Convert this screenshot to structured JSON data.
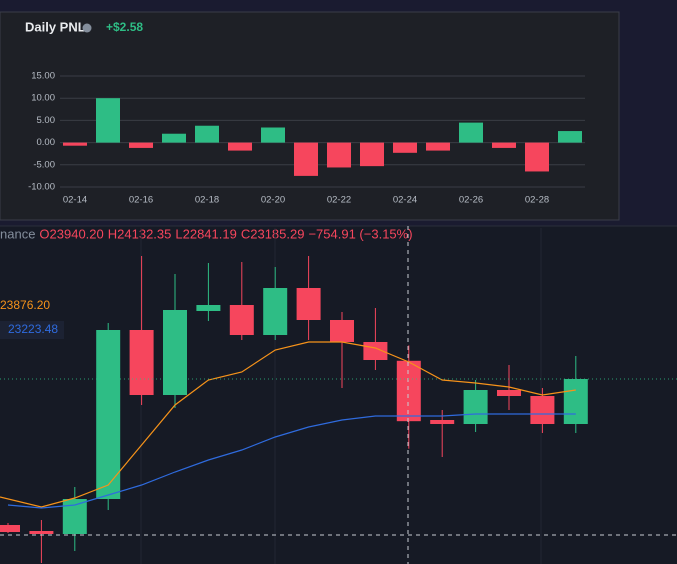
{
  "chart_data": [
    {
      "type": "bar",
      "title": "Daily PNL",
      "subtitle": "+$2.58",
      "categories": [
        "02-14",
        null,
        "02-16",
        null,
        "02-18",
        null,
        "02-20",
        null,
        "02-22",
        null,
        "02-24",
        null,
        "02-26",
        null,
        "02-28",
        null
      ],
      "values": [
        -0.7,
        10.0,
        -1.2,
        2.0,
        3.8,
        -1.8,
        3.4,
        -7.5,
        -5.6,
        -5.3,
        -2.3,
        -1.8,
        4.5,
        -1.2,
        -6.5,
        2.6
      ],
      "up_color": "#2ebd85",
      "down_color": "#f6465d",
      "ylim": [
        -10,
        15
      ],
      "yticks": [
        {
          "value": 15,
          "label": "15.00"
        },
        {
          "value": 10,
          "label": "10.00"
        },
        {
          "value": 5,
          "label": "5.00"
        },
        {
          "value": 0,
          "label": "0.00"
        },
        {
          "value": -5,
          "label": "-5.00"
        },
        {
          "value": -10,
          "label": "-10.00"
        }
      ],
      "grid": true
    },
    {
      "type": "candlestick",
      "symbol": "nance",
      "ohlc_labels": [
        "O23940.20",
        "H24132.35",
        "L22841.19",
        "C23185.29"
      ],
      "change_label": "−754.91 (−3.15%)",
      "open": [
        21887.5,
        21812.5,
        21775,
        22212.5,
        24325,
        23512.5,
        24562.5,
        24637.5,
        24262.5,
        24850,
        24450,
        24175,
        23940.2,
        23200,
        23150,
        23575,
        23500,
        23150
      ],
      "high": [
        21912.5,
        21950,
        22362.5,
        24412.5,
        25250,
        25025,
        25162.5,
        25175,
        25112.5,
        25250,
        24550,
        24600,
        24132.35,
        23325,
        23700,
        23887.5,
        23600,
        24000
      ],
      "low": [
        21787.5,
        21412.5,
        21562.5,
        22075,
        23387.5,
        23350,
        24437.5,
        24200,
        24200,
        24200,
        23600,
        23825,
        22841.19,
        22737.5,
        23050,
        23325,
        23037.5,
        23037.5
      ],
      "close": [
        21800,
        21775,
        22212.5,
        24325,
        23512.5,
        24575,
        24637.5,
        24262.5,
        24850,
        24450,
        24175,
        23950,
        23185.29,
        23150,
        23575,
        23500,
        23150,
        23712.5
      ],
      "up_color": "#2ebd85",
      "down_color": "#f6465d",
      "ylim": [
        21400,
        25600
      ],
      "overlays": [
        {
          "label": "23876.20",
          "color": "#f7931a",
          "values": [
            22237.5,
            22112.5,
            22225,
            22387.5,
            22887.5,
            23387.5,
            23700,
            23800,
            24075,
            24175,
            24175,
            24100,
            23925,
            23700,
            23662.5,
            23612.5,
            23512.5,
            23575
          ]
        },
        {
          "label": "23223.48",
          "color": "#2f6bde",
          "values": [
            22137.5,
            22100,
            22137.5,
            22262.5,
            22387.5,
            22550,
            22700,
            22825,
            22987.5,
            23112.5,
            23200,
            23250,
            23250,
            23250,
            23275,
            23275,
            23275,
            23275
          ]
        }
      ]
    }
  ]
}
